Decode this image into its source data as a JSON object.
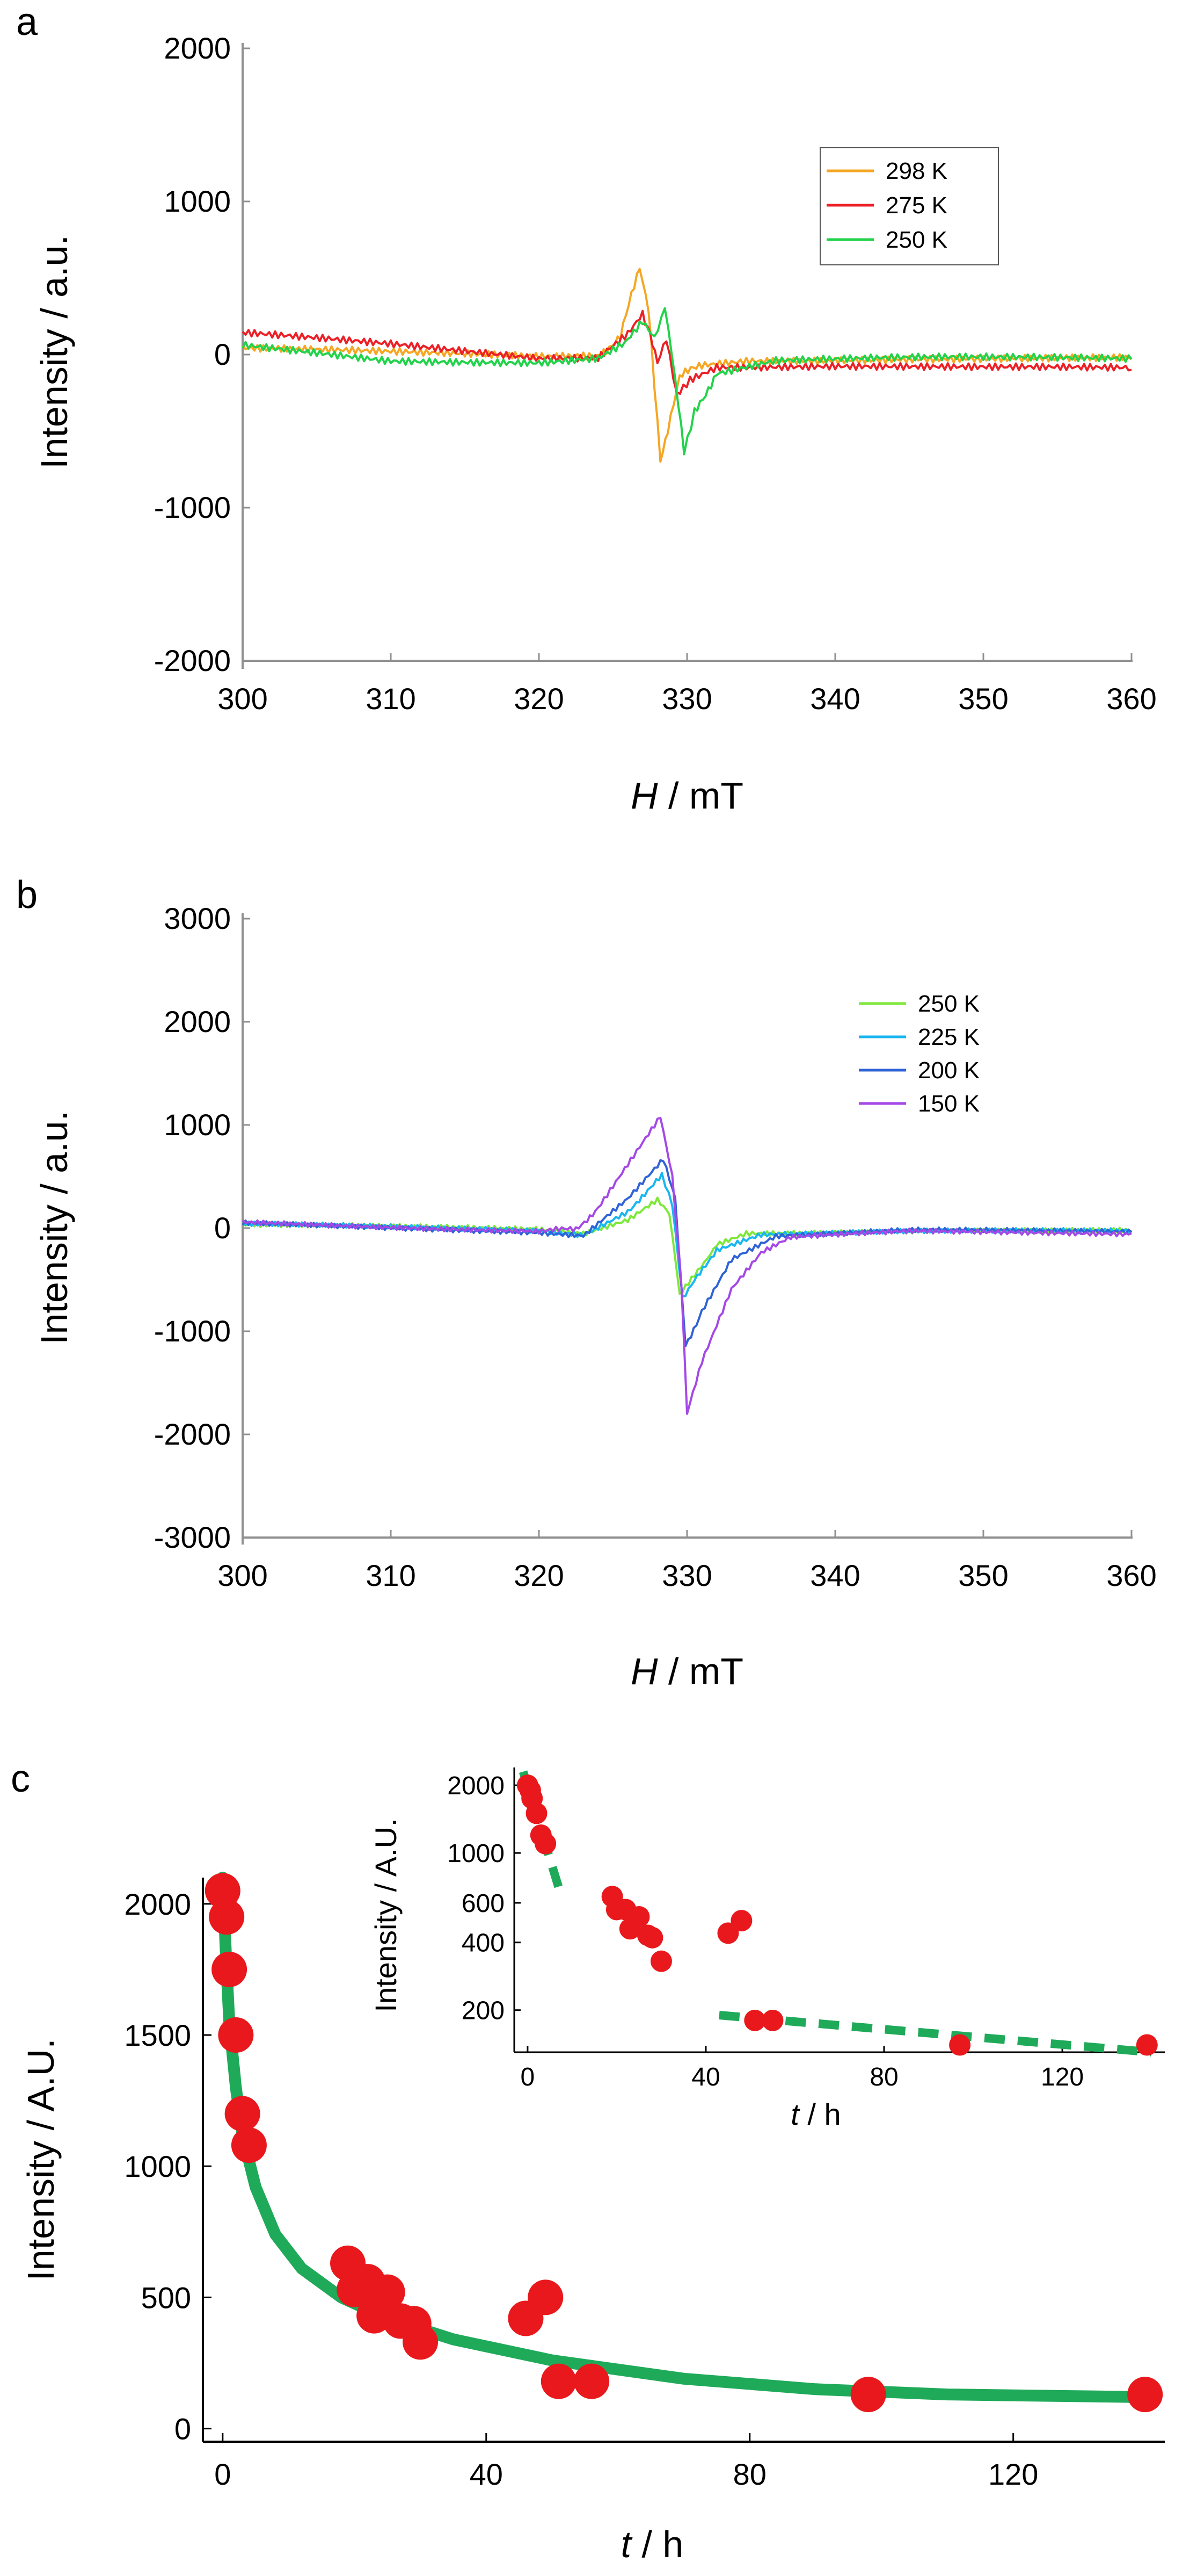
{
  "chart_data": [
    {
      "panel": "a",
      "type": "line",
      "xlabel_italic": "H",
      "xlabel_rest": " / mT",
      "ylabel": "Intensity / a.u.",
      "xlim": [
        300,
        360
      ],
      "ylim": [
        -2000,
        2000
      ],
      "xticks": [
        300,
        310,
        320,
        330,
        340,
        350,
        360
      ],
      "yticks": [
        -2000,
        -1000,
        0,
        1000,
        2000
      ],
      "legend_position": "top-right",
      "series": [
        {
          "name": "298 K",
          "color": "#f5a623",
          "points": [
            [
              300,
              40
            ],
            [
              312,
              0
            ],
            [
              320,
              -20
            ],
            [
              324,
              -10
            ],
            [
              325.5,
              120
            ],
            [
              326.8,
              570
            ],
            [
              327.4,
              300
            ],
            [
              327.8,
              -200
            ],
            [
              328.2,
              -680
            ],
            [
              328.7,
              -500
            ],
            [
              329.5,
              -150
            ],
            [
              331,
              -60
            ],
            [
              334,
              -30
            ],
            [
              345,
              -20
            ],
            [
              360,
              -30
            ]
          ]
        },
        {
          "name": "275 K",
          "color": "#ec2027",
          "points": [
            [
              300,
              130
            ],
            [
              310,
              60
            ],
            [
              320,
              -20
            ],
            [
              324,
              -10
            ],
            [
              326,
              150
            ],
            [
              327,
              280
            ],
            [
              327.5,
              120
            ],
            [
              328,
              -40
            ],
            [
              328.6,
              120
            ],
            [
              329.3,
              -280
            ],
            [
              330.2,
              -150
            ],
            [
              332,
              -70
            ],
            [
              340,
              -70
            ],
            [
              350,
              -90
            ],
            [
              360,
              -100
            ]
          ]
        },
        {
          "name": "250 K",
          "color": "#22d34a",
          "points": [
            [
              300,
              50
            ],
            [
              310,
              -40
            ],
            [
              320,
              -40
            ],
            [
              324,
              -10
            ],
            [
              325.8,
              90
            ],
            [
              327,
              230
            ],
            [
              327.8,
              120
            ],
            [
              328.5,
              300
            ],
            [
              329.2,
              -150
            ],
            [
              329.8,
              -620
            ],
            [
              330.5,
              -380
            ],
            [
              332,
              -120
            ],
            [
              336,
              -40
            ],
            [
              345,
              -30
            ],
            [
              360,
              -30
            ]
          ]
        }
      ]
    },
    {
      "panel": "b",
      "type": "line",
      "xlabel_italic": "H",
      "xlabel_rest": " / mT",
      "ylabel": "Intensity / a.u.",
      "xlim": [
        300,
        360
      ],
      "ylim": [
        -3000,
        3000
      ],
      "xticks": [
        300,
        310,
        320,
        330,
        340,
        350,
        360
      ],
      "yticks": [
        -3000,
        -2000,
        -1000,
        0,
        1000,
        2000,
        3000
      ],
      "legend_position": "top-right",
      "series": [
        {
          "name": "250 K",
          "color": "#7de83a",
          "points": [
            [
              300,
              30
            ],
            [
              320,
              -20
            ],
            [
              323,
              -60
            ],
            [
              326,
              80
            ],
            [
              328,
              280
            ],
            [
              328.8,
              150
            ],
            [
              329.5,
              -650
            ],
            [
              330.3,
              -500
            ],
            [
              332,
              -150
            ],
            [
              334,
              -40
            ],
            [
              345,
              -20
            ],
            [
              360,
              -30
            ]
          ]
        },
        {
          "name": "225 K",
          "color": "#18b6f0",
          "points": [
            [
              300,
              30
            ],
            [
              320,
              -20
            ],
            [
              323,
              -60
            ],
            [
              326,
              170
            ],
            [
              328.3,
              500
            ],
            [
              329,
              250
            ],
            [
              329.7,
              -700
            ],
            [
              330.5,
              -520
            ],
            [
              332,
              -200
            ],
            [
              335,
              -50
            ],
            [
              345,
              -30
            ],
            [
              360,
              -40
            ]
          ]
        },
        {
          "name": "200 K",
          "color": "#2f63d6",
          "points": [
            [
              300,
              40
            ],
            [
              320,
              -30
            ],
            [
              323,
              -60
            ],
            [
              326,
              300
            ],
            [
              328.4,
              680
            ],
            [
              329.2,
              300
            ],
            [
              329.9,
              -1150
            ],
            [
              331,
              -800
            ],
            [
              333,
              -300
            ],
            [
              336,
              -80
            ],
            [
              345,
              -30
            ],
            [
              360,
              -40
            ]
          ]
        },
        {
          "name": "150 K",
          "color": "#a448e6",
          "points": [
            [
              300,
              60
            ],
            [
              310,
              20
            ],
            [
              320,
              -20
            ],
            [
              322.5,
              -20
            ],
            [
              324,
              200
            ],
            [
              326,
              620
            ],
            [
              328.2,
              1080
            ],
            [
              329,
              500
            ],
            [
              329.6,
              -500
            ],
            [
              330,
              -1800
            ],
            [
              331,
              -1300
            ],
            [
              333,
              -600
            ],
            [
              335,
              -250
            ],
            [
              337,
              -100
            ],
            [
              345,
              -40
            ],
            [
              360,
              -50
            ]
          ]
        }
      ]
    },
    {
      "panel": "c",
      "type": "scatter",
      "xlabel_italic": "t",
      "xlabel_rest": " / h",
      "ylabel": "Intensity / A.U.",
      "xlim": [
        -3,
        143
      ],
      "ylim": [
        -50,
        2100
      ],
      "xticks": [
        0,
        40,
        80,
        120
      ],
      "yticks": [
        0,
        500,
        1000,
        1500,
        2000
      ],
      "scatter_color": "#e8181c",
      "fit_color": "#1faa5a",
      "points": [
        [
          0,
          2050
        ],
        [
          0.6,
          1950
        ],
        [
          1,
          1750
        ],
        [
          2,
          1500
        ],
        [
          3,
          1200
        ],
        [
          4,
          1080
        ],
        [
          19,
          630
        ],
        [
          20,
          530
        ],
        [
          22,
          560
        ],
        [
          23,
          430
        ],
        [
          25,
          520
        ],
        [
          27,
          410
        ],
        [
          29,
          400
        ],
        [
          30,
          330
        ],
        [
          46,
          420
        ],
        [
          49,
          500
        ],
        [
          51,
          180
        ],
        [
          56,
          180
        ],
        [
          98,
          130
        ],
        [
          140,
          130
        ]
      ],
      "fit": [
        [
          0,
          2100
        ],
        [
          0.5,
          1800
        ],
        [
          1,
          1550
        ],
        [
          2,
          1300
        ],
        [
          3,
          1120
        ],
        [
          5,
          920
        ],
        [
          8,
          740
        ],
        [
          12,
          610
        ],
        [
          18,
          500
        ],
        [
          25,
          420
        ],
        [
          35,
          340
        ],
        [
          50,
          260
        ],
        [
          70,
          190
        ],
        [
          90,
          150
        ],
        [
          110,
          130
        ],
        [
          140,
          120
        ]
      ],
      "inset": {
        "type": "scatter",
        "yscale": "log",
        "xlabel_italic": "t",
        "xlabel_rest": " / h",
        "ylabel": "Intensity / A.U.",
        "xlim": [
          -3,
          143
        ],
        "ylim": [
          130,
          2400
        ],
        "xticks": [
          0,
          40,
          80,
          120
        ],
        "yticks": [
          200,
          400,
          600,
          1000,
          2000
        ],
        "points": [
          [
            0,
            2000
          ],
          [
            0.6,
            1900
          ],
          [
            1,
            1750
          ],
          [
            2,
            1500
          ],
          [
            3,
            1200
          ],
          [
            4,
            1100
          ],
          [
            19,
            640
          ],
          [
            20,
            560
          ],
          [
            22,
            560
          ],
          [
            23,
            460
          ],
          [
            25,
            520
          ],
          [
            27,
            430
          ],
          [
            28,
            420
          ],
          [
            30,
            330
          ],
          [
            45,
            440
          ],
          [
            48,
            500
          ],
          [
            51,
            180
          ],
          [
            55,
            180
          ],
          [
            97,
            140
          ],
          [
            139,
            140
          ]
        ],
        "fit1": [
          [
            -1,
            2300
          ],
          [
            7,
            700
          ]
        ],
        "fit2": [
          [
            43,
            190
          ],
          [
            140,
            130
          ]
        ]
      }
    }
  ],
  "panel_labels": [
    "a",
    "b",
    "c"
  ]
}
